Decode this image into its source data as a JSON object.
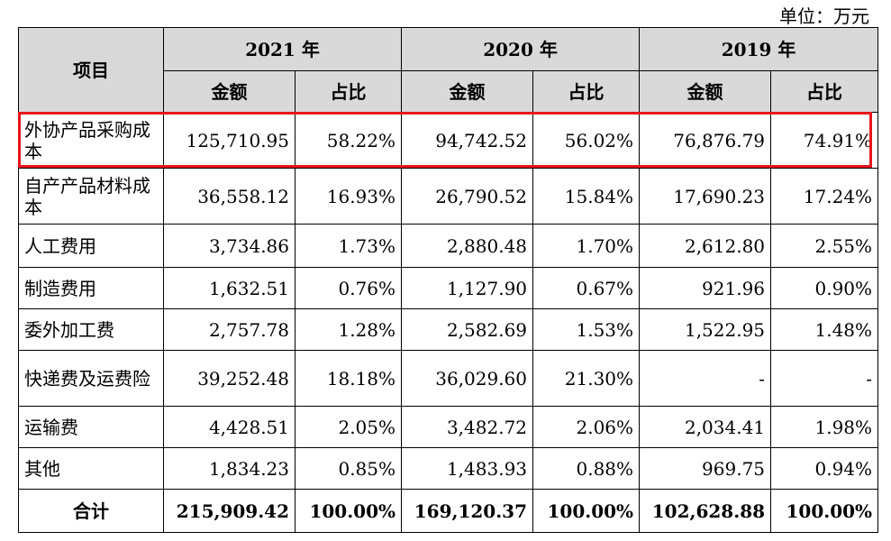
{
  "unit_label": "单位：万元",
  "header": {
    "item": "项目",
    "years": [
      "2021 年",
      "2020 年",
      "2019 年"
    ],
    "amount": "金额",
    "ratio": "占比"
  },
  "rows": [
    {
      "label": "外协产品采购成本",
      "v2021": "125,710.95",
      "p2021": "58.22%",
      "v2020": "94,742.52",
      "p2020": "56.02%",
      "v2019": "76,876.79",
      "p2019": "74.91%"
    },
    {
      "label": "自产产品材料成本",
      "v2021": "36,558.12",
      "p2021": "16.93%",
      "v2020": "26,790.52",
      "p2020": "15.84%",
      "v2019": "17,690.23",
      "p2019": "17.24%"
    },
    {
      "label": "人工费用",
      "v2021": "3,734.86",
      "p2021": "1.73%",
      "v2020": "2,880.48",
      "p2020": "1.70%",
      "v2019": "2,612.80",
      "p2019": "2.55%"
    },
    {
      "label": "制造费用",
      "v2021": "1,632.51",
      "p2021": "0.76%",
      "v2020": "1,127.90",
      "p2020": "0.67%",
      "v2019": "921.96",
      "p2019": "0.90%"
    },
    {
      "label": "委外加工费",
      "v2021": "2,757.78",
      "p2021": "1.28%",
      "v2020": "2,582.69",
      "p2020": "1.53%",
      "v2019": "1,522.95",
      "p2019": "1.48%"
    },
    {
      "label": "快递费及运费险",
      "v2021": "39,252.48",
      "p2021": "18.18%",
      "v2020": "36,029.60",
      "p2020": "21.30%",
      "v2019": "-",
      "p2019": "-"
    },
    {
      "label": "运输费",
      "v2021": "4,428.51",
      "p2021": "2.05%",
      "v2020": "3,482.72",
      "p2020": "2.06%",
      "v2019": "2,034.41",
      "p2019": "1.98%"
    },
    {
      "label": "其他",
      "v2021": "1,834.23",
      "p2021": "0.85%",
      "v2020": "1,483.93",
      "p2020": "0.88%",
      "v2019": "969.75",
      "p2019": "0.94%"
    }
  ],
  "total": {
    "label": "合计",
    "v2021": "215,909.42",
    "p2021": "100.00%",
    "v2020": "169,120.37",
    "p2020": "100.00%",
    "v2019": "102,628.88",
    "p2019": "100.00%"
  },
  "highlight_color": "#e8161b"
}
